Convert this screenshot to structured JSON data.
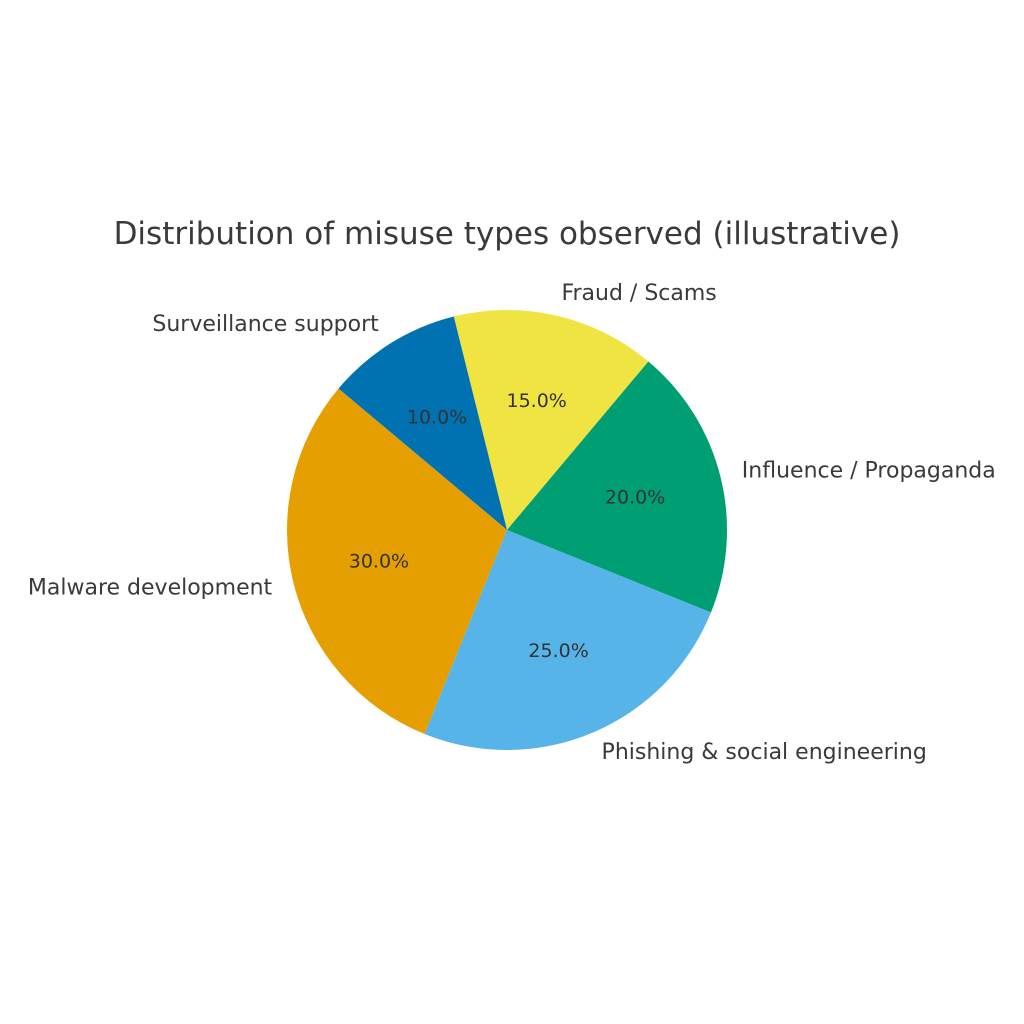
{
  "chart_data": {
    "type": "pie",
    "title": "Distribution of misuse types observed (illustrative)",
    "slices": [
      {
        "label": "Fraud / Scams",
        "value": 15.0,
        "pct_label": "15.0%",
        "color": "#F0E442"
      },
      {
        "label": "Surveillance support",
        "value": 10.0,
        "pct_label": "10.0%",
        "color": "#0072B2"
      },
      {
        "label": "Malware development",
        "value": 30.0,
        "pct_label": "30.0%",
        "color": "#E69F00"
      },
      {
        "label": "Phishing & social engineering",
        "value": 25.0,
        "pct_label": "25.0%",
        "color": "#56B4E9"
      },
      {
        "label": "Influence / Propaganda",
        "value": 20.0,
        "pct_label": "20.0%",
        "color": "#009E73"
      }
    ],
    "start_angle_deg": 50,
    "direction": "counterclockwise",
    "legend": "none"
  }
}
